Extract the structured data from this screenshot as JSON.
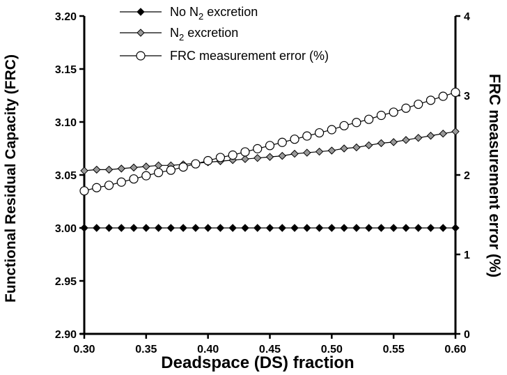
{
  "chart_data": {
    "type": "line",
    "xlabel": "Deadspace (DS) fraction",
    "ylabel": "Functional Residual Capacity (FRC)",
    "y2label": "FRC measurement error (%)",
    "xlim": [
      0.3,
      0.6
    ],
    "ylim": [
      2.9,
      3.2
    ],
    "y2lim": [
      0,
      4
    ],
    "x_ticks": [
      "0.30",
      "0.35",
      "0.40",
      "0.45",
      "0.50",
      "0.55",
      "0.60"
    ],
    "y_ticks": [
      "2.90",
      "2.95",
      "3.00",
      "3.05",
      "3.10",
      "3.15",
      "3.20"
    ],
    "y2_ticks": [
      "0",
      "1",
      "2",
      "3",
      "4"
    ],
    "grid": false,
    "legend_position": "top-center",
    "x": [
      0.3,
      0.31,
      0.32,
      0.33,
      0.34,
      0.35,
      0.36,
      0.37,
      0.38,
      0.39,
      0.4,
      0.41,
      0.42,
      0.43,
      0.44,
      0.45,
      0.46,
      0.47,
      0.48,
      0.49,
      0.5,
      0.51,
      0.52,
      0.53,
      0.54,
      0.55,
      0.56,
      0.57,
      0.58,
      0.59,
      0.6
    ],
    "series": [
      {
        "name_main": "No N",
        "name_sub": "2",
        "name_rest": " excretion",
        "axis": "left",
        "marker": "diamond",
        "fill": "#000000",
        "values": [
          3.0,
          3.0,
          3.0,
          3.0,
          3.0,
          3.0,
          3.0,
          3.0,
          3.0,
          3.0,
          3.0,
          3.0,
          3.0,
          3.0,
          3.0,
          3.0,
          3.0,
          3.0,
          3.0,
          3.0,
          3.0,
          3.0,
          3.0,
          3.0,
          3.0,
          3.0,
          3.0,
          3.0,
          3.0,
          3.0,
          3.0
        ]
      },
      {
        "name_main": "N",
        "name_sub": "2",
        "name_rest": " excretion",
        "axis": "left",
        "marker": "diamond",
        "fill": "#999999",
        "values": [
          3.054,
          3.055,
          3.055,
          3.056,
          3.057,
          3.058,
          3.059,
          3.059,
          3.06,
          3.061,
          3.062,
          3.063,
          3.064,
          3.065,
          3.066,
          3.067,
          3.068,
          3.07,
          3.071,
          3.072,
          3.073,
          3.075,
          3.076,
          3.078,
          3.08,
          3.081,
          3.083,
          3.085,
          3.087,
          3.089,
          3.091
        ]
      },
      {
        "name_main": "FRC measurement error (%)",
        "name_sub": "",
        "name_rest": "",
        "axis": "right",
        "marker": "circle",
        "fill": "#ffffff",
        "values": [
          1.8,
          1.84,
          1.87,
          1.91,
          1.95,
          1.99,
          2.03,
          2.06,
          2.1,
          2.14,
          2.18,
          2.22,
          2.25,
          2.29,
          2.33,
          2.37,
          2.41,
          2.45,
          2.49,
          2.53,
          2.57,
          2.62,
          2.66,
          2.7,
          2.75,
          2.79,
          2.84,
          2.89,
          2.94,
          2.99,
          3.04
        ]
      }
    ]
  }
}
